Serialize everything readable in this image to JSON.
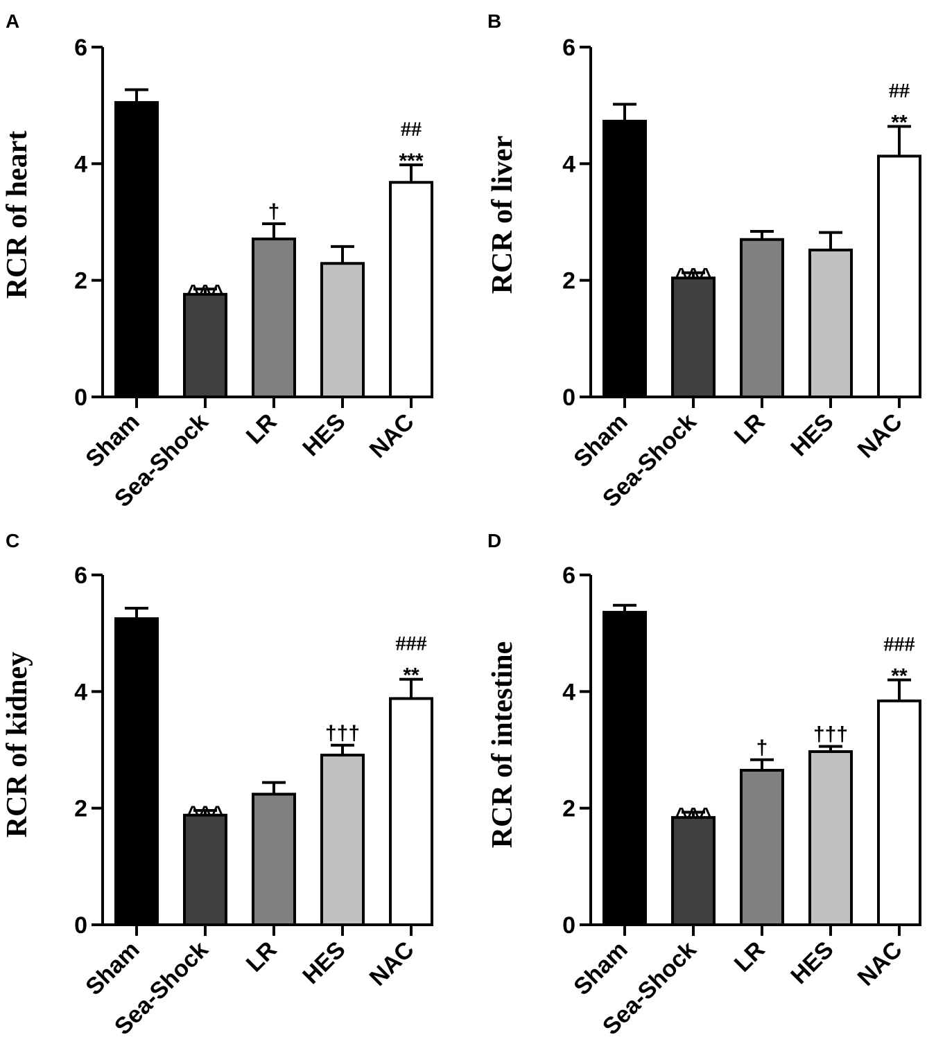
{
  "figure": {
    "colors": {
      "axis": "#000000",
      "bar_fills": [
        "#000000",
        "#404040",
        "#808080",
        "#c0c0c0",
        "#ffffff"
      ]
    }
  },
  "chart_data": [
    {
      "panel": "A",
      "type": "bar",
      "ylabel": "RCR of  heart",
      "ylim": [
        0,
        6
      ],
      "yticks": [
        "0",
        "2",
        "4",
        "6"
      ],
      "categories": [
        "Sham",
        "Sea-Shock",
        "LR",
        "HES",
        "NAC"
      ],
      "values": [
        5.05,
        1.76,
        2.71,
        2.29,
        3.68
      ],
      "errors": [
        0.22,
        0.09,
        0.26,
        0.29,
        0.3
      ],
      "annotations": [
        {
          "index": 1,
          "lines": [
            "^^^"
          ]
        },
        {
          "index": 2,
          "lines": [
            "†"
          ]
        },
        {
          "index": 4,
          "lines": [
            "##",
            "***"
          ]
        }
      ]
    },
    {
      "panel": "B",
      "type": "bar",
      "ylabel": "RCR of liver",
      "ylim": [
        0,
        6
      ],
      "yticks": [
        "0",
        "2",
        "4",
        "6"
      ],
      "categories": [
        "Sham",
        "Sea-Shock",
        "LR",
        "HES",
        "NAC"
      ],
      "values": [
        4.73,
        2.04,
        2.7,
        2.52,
        4.13
      ],
      "errors": [
        0.29,
        0.09,
        0.14,
        0.3,
        0.51
      ],
      "annotations": [
        {
          "index": 1,
          "lines": [
            "^^^"
          ]
        },
        {
          "index": 4,
          "lines": [
            "##",
            "**"
          ]
        }
      ]
    },
    {
      "panel": "C",
      "type": "bar",
      "ylabel": "RCR of kidney",
      "ylim": [
        0,
        6
      ],
      "yticks": [
        "0",
        "2",
        "4",
        "6"
      ],
      "categories": [
        "Sham",
        "Sea-Shock",
        "LR",
        "HES",
        "NAC"
      ],
      "values": [
        5.25,
        1.88,
        2.24,
        2.91,
        3.88
      ],
      "errors": [
        0.18,
        0.08,
        0.2,
        0.17,
        0.33
      ],
      "annotations": [
        {
          "index": 1,
          "lines": [
            "^^^"
          ]
        },
        {
          "index": 3,
          "lines": [
            "†††"
          ]
        },
        {
          "index": 4,
          "lines": [
            "###",
            "**"
          ]
        }
      ]
    },
    {
      "panel": "D",
      "type": "bar",
      "ylabel": "RCR of intestine",
      "ylim": [
        0,
        6
      ],
      "yticks": [
        "0",
        "2",
        "4",
        "6"
      ],
      "categories": [
        "Sham",
        "Sea-Shock",
        "LR",
        "HES",
        "NAC"
      ],
      "values": [
        5.36,
        1.84,
        2.65,
        2.97,
        3.84
      ],
      "errors": [
        0.12,
        0.09,
        0.18,
        0.09,
        0.36
      ],
      "annotations": [
        {
          "index": 1,
          "lines": [
            "^^^"
          ]
        },
        {
          "index": 2,
          "lines": [
            "†"
          ]
        },
        {
          "index": 3,
          "lines": [
            "†††"
          ]
        },
        {
          "index": 4,
          "lines": [
            "###",
            "**"
          ]
        }
      ]
    }
  ]
}
